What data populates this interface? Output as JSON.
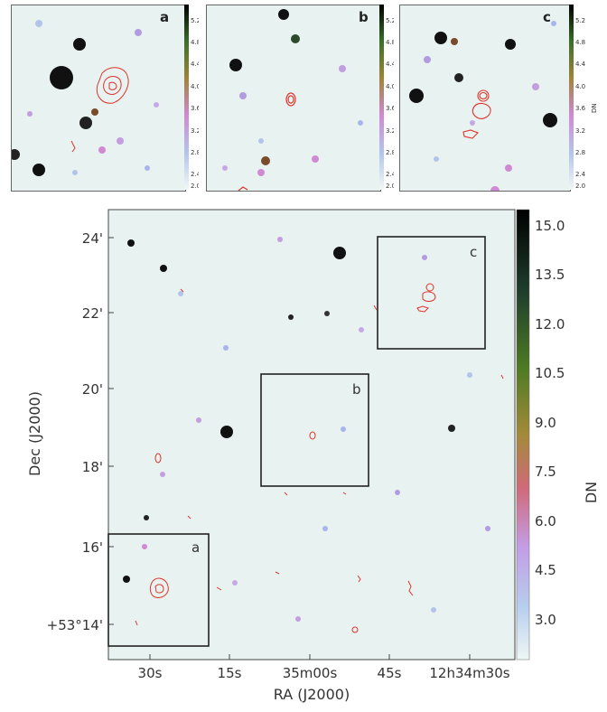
{
  "top_panels": [
    {
      "label": "a"
    },
    {
      "label": "b"
    },
    {
      "label": "c"
    }
  ],
  "small_colorbar": {
    "ticks": [
      "5.2",
      "4.8",
      "4.4",
      "4.0",
      "3.6",
      "3.2",
      "2.8",
      "2.4",
      "2.0"
    ],
    "unit": "DN"
  },
  "main_plot": {
    "y_ticks": [
      "24'",
      "22'",
      "20'",
      "18'",
      "16'",
      "+53°14'"
    ],
    "x_ticks": [
      "30s",
      "15s",
      "35m00s",
      "45s",
      "12h34m30s"
    ],
    "xlabel": "RA (J2000)",
    "ylabel": "Dec (J2000)",
    "boxes": [
      {
        "label": "c"
      },
      {
        "label": "b"
      },
      {
        "label": "a"
      }
    ]
  },
  "main_colorbar": {
    "ticks": [
      "15.0",
      "13.5",
      "12.0",
      "10.5",
      "9.0",
      "7.5",
      "6.0",
      "4.5",
      "3.0"
    ],
    "unit": "DN"
  },
  "colors": {
    "background": "#e8f3f1",
    "contour": "#e0322a",
    "star": "#111111"
  }
}
